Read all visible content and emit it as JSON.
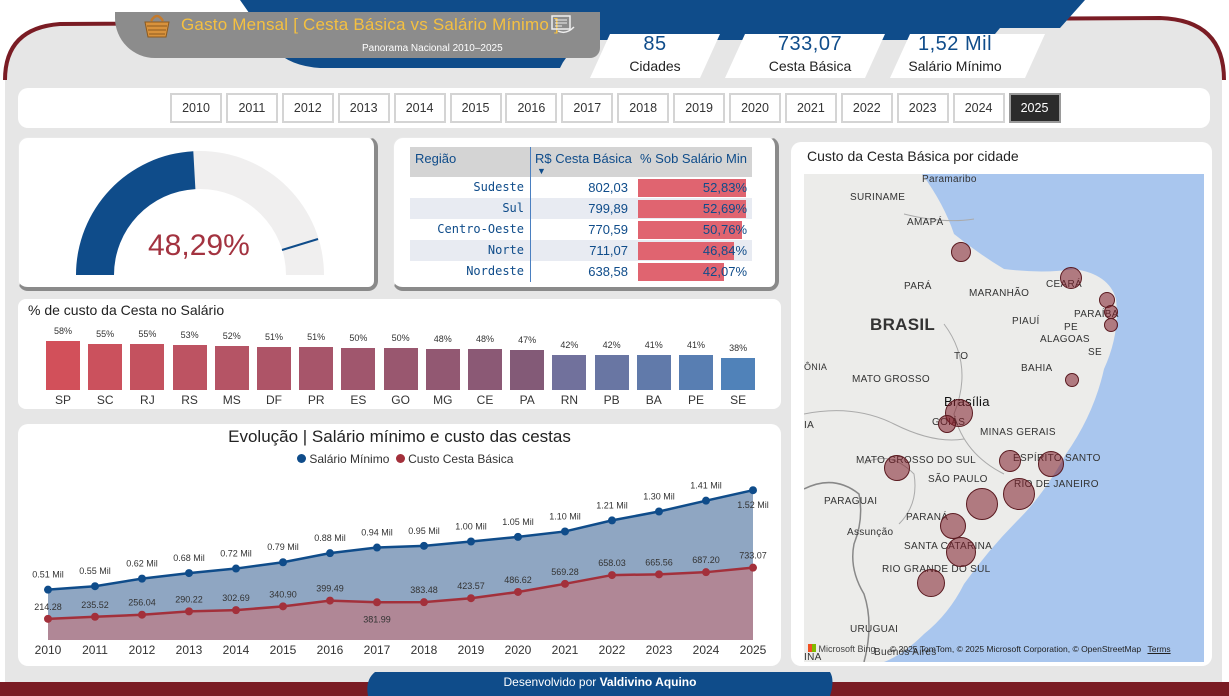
{
  "header": {
    "title": "Gasto Mensal [ Cesta Básica vs Salário Mínimo ]",
    "subtitle": "Panorama Nacional 2010–2025",
    "basket_icon": "basket-icon",
    "card_icon": "wallet-card-icon"
  },
  "kpis": [
    {
      "value": "85",
      "label": "Cidades"
    },
    {
      "value": "733,07",
      "label": "Cesta Básica"
    },
    {
      "value": "1,52 Mil",
      "label": "Salário Mínimo"
    }
  ],
  "years": [
    "2010",
    "2011",
    "2012",
    "2013",
    "2014",
    "2015",
    "2016",
    "2017",
    "2018",
    "2019",
    "2020",
    "2021",
    "2022",
    "2023",
    "2024",
    "2025"
  ],
  "selected_year": "2025",
  "gauge": {
    "value_text": "48,29%",
    "fraction": 0.4829
  },
  "region_table": {
    "headers": [
      "Região",
      "R$ Cesta Básica",
      "% Sob Salário Min"
    ],
    "rows": [
      {
        "region": "Sudeste",
        "cost": "802,03",
        "pct": "52,83%",
        "frac": 0.5283
      },
      {
        "region": "Sul",
        "cost": "799,89",
        "pct": "52,69%",
        "frac": 0.5269
      },
      {
        "region": "Centro-Oeste",
        "cost": "770,59",
        "pct": "50,76%",
        "frac": 0.5076
      },
      {
        "region": "Norte",
        "cost": "711,07",
        "pct": "46,84%",
        "frac": 0.4684
      },
      {
        "region": "Nordeste",
        "cost": "638,58",
        "pct": "42,07%",
        "frac": 0.4207
      }
    ]
  },
  "chart_data": [
    {
      "type": "bar",
      "title": "% de custo da Cesta no Salário",
      "categories": [
        "SP",
        "SC",
        "RJ",
        "RS",
        "MS",
        "DF",
        "PR",
        "ES",
        "GO",
        "MG",
        "CE",
        "PA",
        "RN",
        "PB",
        "BA",
        "PE",
        "SE"
      ],
      "values": [
        58,
        55,
        55,
        53,
        52,
        51,
        51,
        50,
        50,
        48,
        48,
        47,
        42,
        42,
        41,
        41,
        38
      ],
      "labels": [
        "58%",
        "55%",
        "55%",
        "53%",
        "52%",
        "51%",
        "51%",
        "50%",
        "50%",
        "48%",
        "48%",
        "47%",
        "42%",
        "42%",
        "41%",
        "41%",
        "38%"
      ],
      "ylim": [
        0,
        60
      ]
    },
    {
      "type": "area",
      "title": "Evolução | Salário mínimo e custo das cestas",
      "x": [
        "2010",
        "2011",
        "2012",
        "2013",
        "2014",
        "2015",
        "2016",
        "2017",
        "2018",
        "2019",
        "2020",
        "2021",
        "2022",
        "2023",
        "2024",
        "2025"
      ],
      "series": [
        {
          "name": "Salário Mínimo",
          "color": "#0f4c8a",
          "values": [
            510,
            545,
            622,
            678,
            724,
            788,
            880,
            937,
            954,
            998,
            1045,
            1100,
            1212,
            1302,
            1412,
            1518
          ],
          "labels": [
            "0.51 Mil",
            "0.55 Mil",
            "0.62 Mil",
            "0.68 Mil",
            "0.72 Mil",
            "0.79 Mil",
            "0.88 Mil",
            "0.94 Mil",
            "0.95 Mil",
            "1.00 Mil",
            "1.05 Mil",
            "1.10 Mil",
            "1.21 Mil",
            "1.30 Mil",
            "1.41 Mil",
            "1.52 Mil"
          ]
        },
        {
          "name": "Custo Cesta Básica",
          "color": "#a3303b",
          "values": [
            214.28,
            235.52,
            256.04,
            290.22,
            302.69,
            340.9,
            399.49,
            381.99,
            383.48,
            423.57,
            486.62,
            569.28,
            658.03,
            665.56,
            687.2,
            733.07
          ],
          "labels": [
            "214.28",
            "235.52",
            "256.04",
            "290.22",
            "302.69",
            "340.90",
            "399.49",
            "381.99",
            "383.48",
            "423.57",
            "486.62",
            "569.28",
            "658.03",
            "665.56",
            "687.20",
            "733.07"
          ]
        }
      ],
      "ylim": [
        0,
        1600
      ]
    }
  ],
  "map": {
    "title": "Custo da Cesta Básica por cidade",
    "labels": [
      "SURINAME",
      "AMAPÁ",
      "PARÁ",
      "MARANHÃO",
      "CEARÁ",
      "PIAUÍ",
      "PARAÍBA",
      "PE",
      "ALAGOAS",
      "SE",
      "BRASIL",
      "TO",
      "BAHIA",
      "MATO GROSSO",
      "ÔNIA",
      "Brasília",
      "GOIÁS",
      "MINAS GERAIS",
      "IA",
      "MATO GROSSO DO SUL",
      "ESPÍRITO SANTO",
      "SÃO PAULO",
      "RIO DE JANEIRO",
      "PARAGUAI",
      "PARANÁ",
      "Assunção",
      "SANTA CATARINA",
      "RIO GRANDE DO SUL",
      "URUGUAI",
      "INA",
      "Buenos Aires",
      "Paramaribo"
    ],
    "attribution": "© 2025 TomTom, © 2025 Microsoft Corporation, © OpenStreetMap",
    "terms": "Terms",
    "bing_logo": "Microsoft Bing"
  },
  "footer": {
    "prefix": "Desenvolvido por",
    "author": "Valdivino Aquino"
  },
  "colors": {
    "navy": "#0f4c8a",
    "maroon": "#7a1c24",
    "panel": "#e9e9e9",
    "pct_red": "#e06470"
  }
}
